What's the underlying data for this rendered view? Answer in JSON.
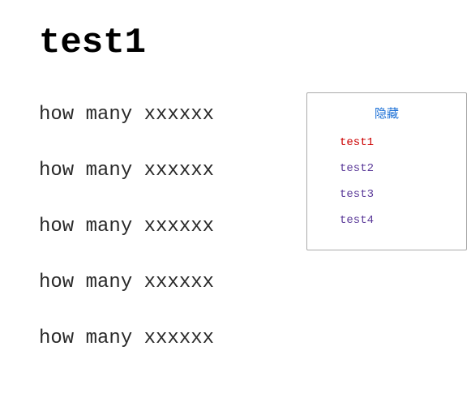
{
  "title": "test1",
  "lines": [
    "how many xxxxxx",
    "how many xxxxxx",
    "how many xxxxxx",
    "how many xxxxxx",
    "how many xxxxxx"
  ],
  "panel": {
    "header": "隐藏",
    "header_color": "#1a6fd6",
    "items": [
      {
        "label": "test1",
        "color": "#cc0000"
      },
      {
        "label": "test2",
        "color": "#5b3a99"
      },
      {
        "label": "test3",
        "color": "#5b3a99"
      },
      {
        "label": "test4",
        "color": "#5b3a99"
      }
    ]
  }
}
